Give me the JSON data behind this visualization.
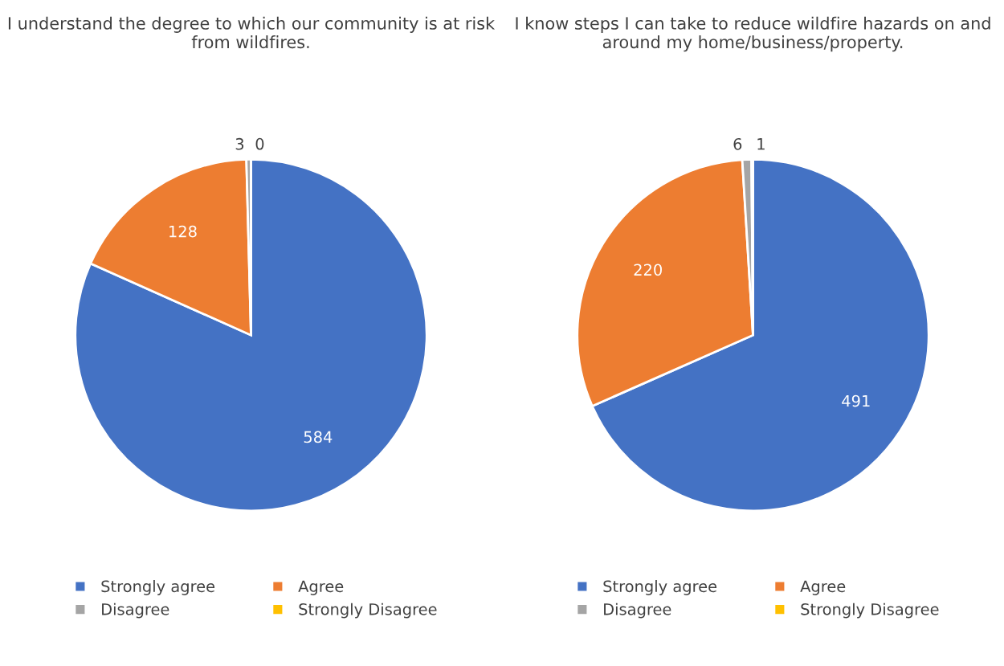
{
  "chart_data": [
    {
      "type": "pie",
      "title": "I understand the degree to which our community is at risk from wildfires.",
      "categories": [
        "Strongly agree",
        "Agree",
        "Disagree",
        "Strongly Disagree"
      ],
      "values": [
        584,
        128,
        3,
        0
      ],
      "value_labels": [
        "584",
        "128",
        "3",
        "0"
      ],
      "colors": [
        "#4472c4",
        "#ed7d31",
        "#a5a5a5",
        "#ffc000"
      ],
      "legend": "bottom"
    },
    {
      "type": "pie",
      "title": "I know steps I can take to reduce wildfire hazards on and around my home/business/property.",
      "categories": [
        "Strongly agree",
        "Agree",
        "Disagree",
        "Strongly Disagree"
      ],
      "values": [
        491,
        220,
        6,
        1
      ],
      "colors": [
        "#4472c4",
        "#ed7d31",
        "#a5a5a5",
        "#ffc000"
      ],
      "data_labels": true,
      "legend": "bottom"
    }
  ]
}
